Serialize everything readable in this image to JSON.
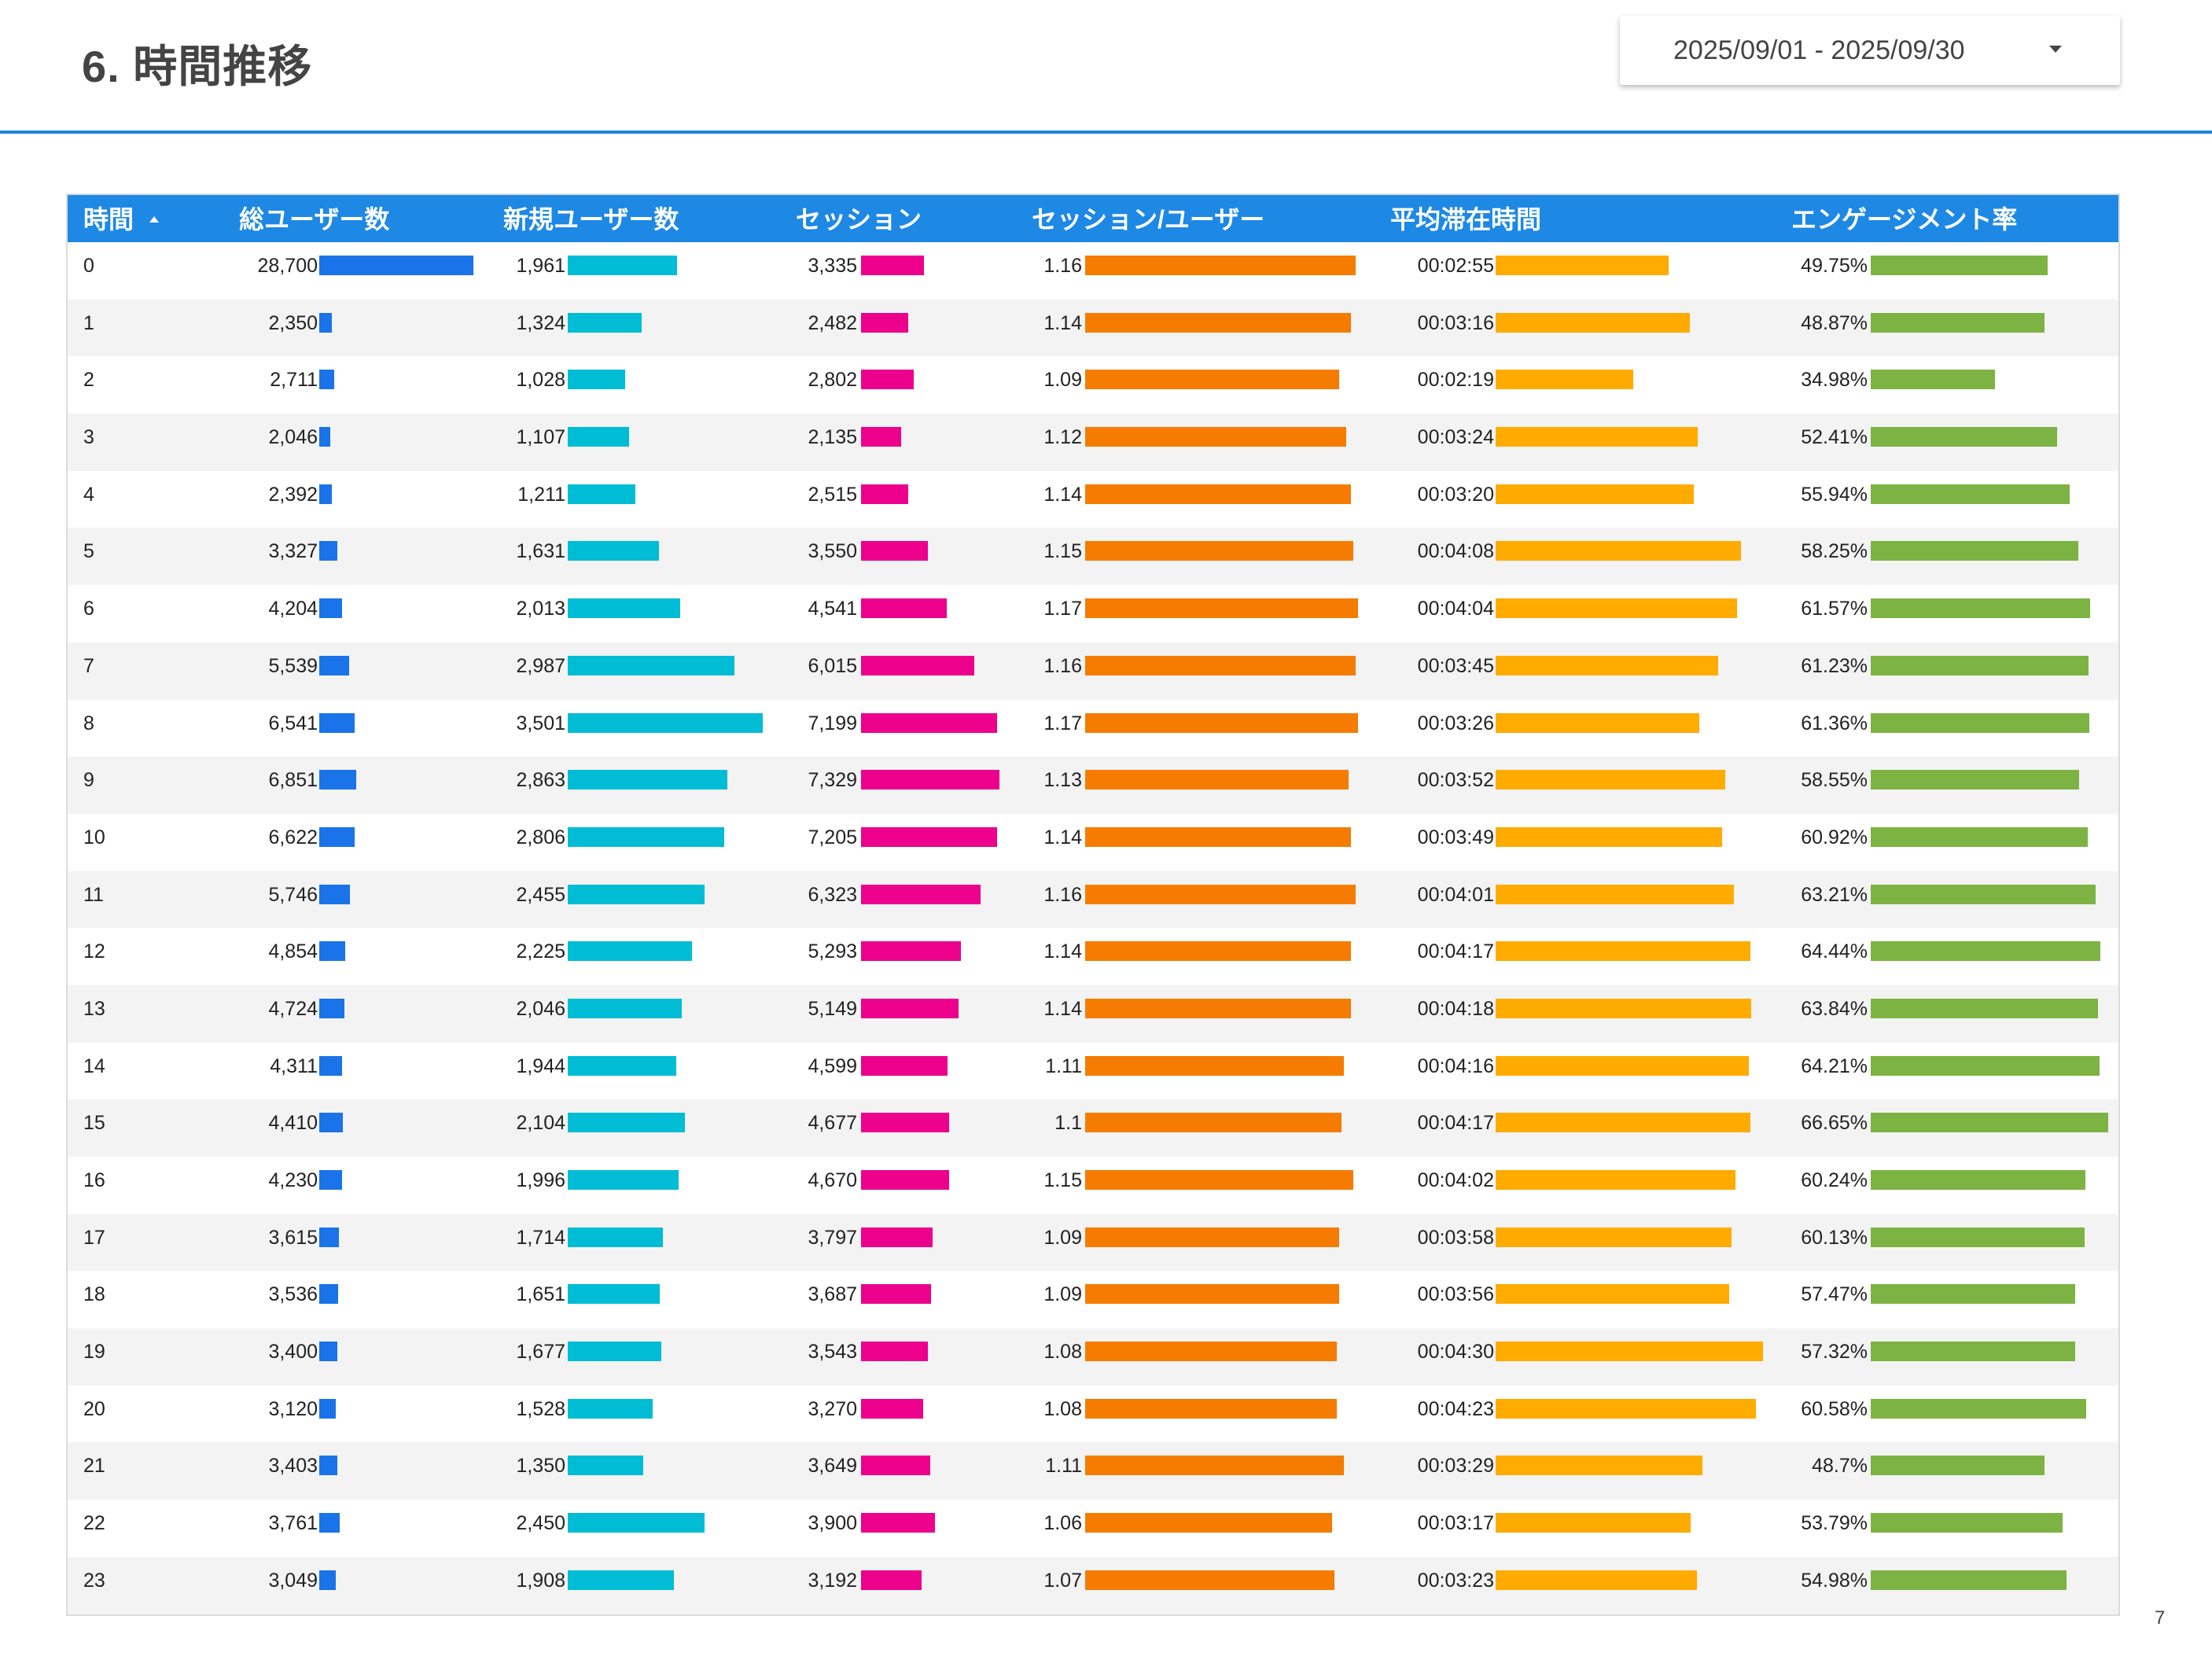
{
  "page": {
    "title": "6.  時間推移",
    "page_number": "7"
  },
  "date_range": {
    "label": "2025/09/01 - 2025/09/30"
  },
  "colors": {
    "users": "#1a73e8",
    "new_users": "#00bcd4",
    "sessions": "#ec008c",
    "spu": "#f57c00",
    "duration": "#ffab00",
    "engagement": "#7cb342",
    "header": "#1e88e5"
  },
  "chart_data": {
    "type": "table",
    "columns": [
      "時間",
      "総ユーザー数",
      "新規ユーザー数",
      "セッション",
      "セッション/ユーザー",
      "平均滞在時間",
      "エンゲージメント率"
    ],
    "sort": {
      "column": "時間",
      "direction": "ascending"
    },
    "rows": [
      {
        "hour": "0",
        "users": 28700,
        "users_label": "28,700",
        "new_users": 1961,
        "new_users_label": "1,961",
        "sessions": 3335,
        "sessions_label": "3,335",
        "spu": 1.16,
        "spu_label": "1.16",
        "duration": 175,
        "duration_label": "00:02:55",
        "engagement": 49.75,
        "engagement_label": "49.75%"
      },
      {
        "hour": "1",
        "users": 2350,
        "users_label": "2,350",
        "new_users": 1324,
        "new_users_label": "1,324",
        "sessions": 2482,
        "sessions_label": "2,482",
        "spu": 1.14,
        "spu_label": "1.14",
        "duration": 196,
        "duration_label": "00:03:16",
        "engagement": 48.87,
        "engagement_label": "48.87%"
      },
      {
        "hour": "2",
        "users": 2711,
        "users_label": "2,711",
        "new_users": 1028,
        "new_users_label": "1,028",
        "sessions": 2802,
        "sessions_label": "2,802",
        "spu": 1.09,
        "spu_label": "1.09",
        "duration": 139,
        "duration_label": "00:02:19",
        "engagement": 34.98,
        "engagement_label": "34.98%"
      },
      {
        "hour": "3",
        "users": 2046,
        "users_label": "2,046",
        "new_users": 1107,
        "new_users_label": "1,107",
        "sessions": 2135,
        "sessions_label": "2,135",
        "spu": 1.12,
        "spu_label": "1.12",
        "duration": 204,
        "duration_label": "00:03:24",
        "engagement": 52.41,
        "engagement_label": "52.41%"
      },
      {
        "hour": "4",
        "users": 2392,
        "users_label": "2,392",
        "new_users": 1211,
        "new_users_label": "1,211",
        "sessions": 2515,
        "sessions_label": "2,515",
        "spu": 1.14,
        "spu_label": "1.14",
        "duration": 200,
        "duration_label": "00:03:20",
        "engagement": 55.94,
        "engagement_label": "55.94%"
      },
      {
        "hour": "5",
        "users": 3327,
        "users_label": "3,327",
        "new_users": 1631,
        "new_users_label": "1,631",
        "sessions": 3550,
        "sessions_label": "3,550",
        "spu": 1.15,
        "spu_label": "1.15",
        "duration": 248,
        "duration_label": "00:04:08",
        "engagement": 58.25,
        "engagement_label": "58.25%"
      },
      {
        "hour": "6",
        "users": 4204,
        "users_label": "4,204",
        "new_users": 2013,
        "new_users_label": "2,013",
        "sessions": 4541,
        "sessions_label": "4,541",
        "spu": 1.17,
        "spu_label": "1.17",
        "duration": 244,
        "duration_label": "00:04:04",
        "engagement": 61.57,
        "engagement_label": "61.57%"
      },
      {
        "hour": "7",
        "users": 5539,
        "users_label": "5,539",
        "new_users": 2987,
        "new_users_label": "2,987",
        "sessions": 6015,
        "sessions_label": "6,015",
        "spu": 1.16,
        "spu_label": "1.16",
        "duration": 225,
        "duration_label": "00:03:45",
        "engagement": 61.23,
        "engagement_label": "61.23%"
      },
      {
        "hour": "8",
        "users": 6541,
        "users_label": "6,541",
        "new_users": 3501,
        "new_users_label": "3,501",
        "sessions": 7199,
        "sessions_label": "7,199",
        "spu": 1.17,
        "spu_label": "1.17",
        "duration": 206,
        "duration_label": "00:03:26",
        "engagement": 61.36,
        "engagement_label": "61.36%"
      },
      {
        "hour": "9",
        "users": 6851,
        "users_label": "6,851",
        "new_users": 2863,
        "new_users_label": "2,863",
        "sessions": 7329,
        "sessions_label": "7,329",
        "spu": 1.13,
        "spu_label": "1.13",
        "duration": 232,
        "duration_label": "00:03:52",
        "engagement": 58.55,
        "engagement_label": "58.55%"
      },
      {
        "hour": "10",
        "users": 6622,
        "users_label": "6,622",
        "new_users": 2806,
        "new_users_label": "2,806",
        "sessions": 7205,
        "sessions_label": "7,205",
        "spu": 1.14,
        "spu_label": "1.14",
        "duration": 229,
        "duration_label": "00:03:49",
        "engagement": 60.92,
        "engagement_label": "60.92%"
      },
      {
        "hour": "11",
        "users": 5746,
        "users_label": "5,746",
        "new_users": 2455,
        "new_users_label": "2,455",
        "sessions": 6323,
        "sessions_label": "6,323",
        "spu": 1.16,
        "spu_label": "1.16",
        "duration": 241,
        "duration_label": "00:04:01",
        "engagement": 63.21,
        "engagement_label": "63.21%"
      },
      {
        "hour": "12",
        "users": 4854,
        "users_label": "4,854",
        "new_users": 2225,
        "new_users_label": "2,225",
        "sessions": 5293,
        "sessions_label": "5,293",
        "spu": 1.14,
        "spu_label": "1.14",
        "duration": 257,
        "duration_label": "00:04:17",
        "engagement": 64.44,
        "engagement_label": "64.44%"
      },
      {
        "hour": "13",
        "users": 4724,
        "users_label": "4,724",
        "new_users": 2046,
        "new_users_label": "2,046",
        "sessions": 5149,
        "sessions_label": "5,149",
        "spu": 1.14,
        "spu_label": "1.14",
        "duration": 258,
        "duration_label": "00:04:18",
        "engagement": 63.84,
        "engagement_label": "63.84%"
      },
      {
        "hour": "14",
        "users": 4311,
        "users_label": "4,311",
        "new_users": 1944,
        "new_users_label": "1,944",
        "sessions": 4599,
        "sessions_label": "4,599",
        "spu": 1.11,
        "spu_label": "1.11",
        "duration": 256,
        "duration_label": "00:04:16",
        "engagement": 64.21,
        "engagement_label": "64.21%"
      },
      {
        "hour": "15",
        "users": 4410,
        "users_label": "4,410",
        "new_users": 2104,
        "new_users_label": "2,104",
        "sessions": 4677,
        "sessions_label": "4,677",
        "spu": 1.1,
        "spu_label": "1.1",
        "duration": 257,
        "duration_label": "00:04:17",
        "engagement": 66.65,
        "engagement_label": "66.65%"
      },
      {
        "hour": "16",
        "users": 4230,
        "users_label": "4,230",
        "new_users": 1996,
        "new_users_label": "1,996",
        "sessions": 4670,
        "sessions_label": "4,670",
        "spu": 1.15,
        "spu_label": "1.15",
        "duration": 242,
        "duration_label": "00:04:02",
        "engagement": 60.24,
        "engagement_label": "60.24%"
      },
      {
        "hour": "17",
        "users": 3615,
        "users_label": "3,615",
        "new_users": 1714,
        "new_users_label": "1,714",
        "sessions": 3797,
        "sessions_label": "3,797",
        "spu": 1.09,
        "spu_label": "1.09",
        "duration": 238,
        "duration_label": "00:03:58",
        "engagement": 60.13,
        "engagement_label": "60.13%"
      },
      {
        "hour": "18",
        "users": 3536,
        "users_label": "3,536",
        "new_users": 1651,
        "new_users_label": "1,651",
        "sessions": 3687,
        "sessions_label": "3,687",
        "spu": 1.09,
        "spu_label": "1.09",
        "duration": 236,
        "duration_label": "00:03:56",
        "engagement": 57.47,
        "engagement_label": "57.47%"
      },
      {
        "hour": "19",
        "users": 3400,
        "users_label": "3,400",
        "new_users": 1677,
        "new_users_label": "1,677",
        "sessions": 3543,
        "sessions_label": "3,543",
        "spu": 1.08,
        "spu_label": "1.08",
        "duration": 270,
        "duration_label": "00:04:30",
        "engagement": 57.32,
        "engagement_label": "57.32%"
      },
      {
        "hour": "20",
        "users": 3120,
        "users_label": "3,120",
        "new_users": 1528,
        "new_users_label": "1,528",
        "sessions": 3270,
        "sessions_label": "3,270",
        "spu": 1.08,
        "spu_label": "1.08",
        "duration": 263,
        "duration_label": "00:04:23",
        "engagement": 60.58,
        "engagement_label": "60.58%"
      },
      {
        "hour": "21",
        "users": 3403,
        "users_label": "3,403",
        "new_users": 1350,
        "new_users_label": "1,350",
        "sessions": 3649,
        "sessions_label": "3,649",
        "spu": 1.11,
        "spu_label": "1.11",
        "duration": 209,
        "duration_label": "00:03:29",
        "engagement": 48.7,
        "engagement_label": "48.7%"
      },
      {
        "hour": "22",
        "users": 3761,
        "users_label": "3,761",
        "new_users": 2450,
        "new_users_label": "2,450",
        "sessions": 3900,
        "sessions_label": "3,900",
        "spu": 1.06,
        "spu_label": "1.06",
        "duration": 197,
        "duration_label": "00:03:17",
        "engagement": 53.79,
        "engagement_label": "53.79%"
      },
      {
        "hour": "23",
        "users": 3049,
        "users_label": "3,049",
        "new_users": 1908,
        "new_users_label": "1,908",
        "sessions": 3192,
        "sessions_label": "3,192",
        "spu": 1.07,
        "spu_label": "1.07",
        "duration": 203,
        "duration_label": "00:03:23",
        "engagement": 54.98,
        "engagement_label": "54.98%"
      }
    ]
  }
}
